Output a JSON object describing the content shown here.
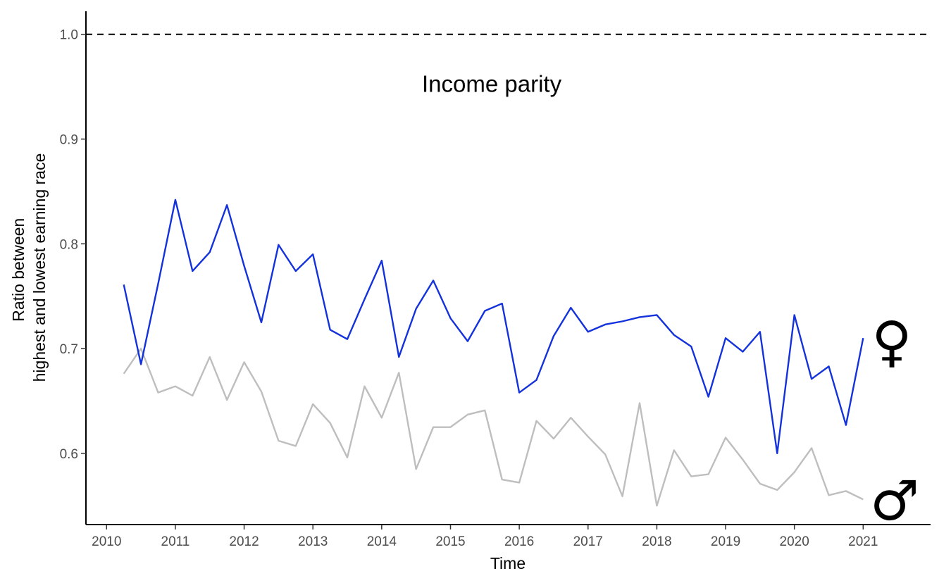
{
  "chart_data": {
    "type": "line",
    "title": "",
    "xlabel": "Time",
    "ylabel_lines": [
      "Ratio between",
      "highest and lowest earning race"
    ],
    "xlim": [
      2009.7,
      2021.98
    ],
    "ylim": [
      0.532,
      1.022
    ],
    "x_ticks": [
      2010,
      2011,
      2012,
      2013,
      2014,
      2015,
      2016,
      2017,
      2018,
      2019,
      2020,
      2021
    ],
    "y_ticks": [
      0.6,
      0.7,
      0.8,
      0.9,
      1.0
    ],
    "y_tick_labels": [
      "0.6",
      "0.7",
      "0.8",
      "0.9",
      "1.0"
    ],
    "grid": false,
    "reference_line": {
      "y": 1.0,
      "style": "dashed",
      "color": "#000000"
    },
    "annotation": {
      "text": "Income parity",
      "x": 2015.6,
      "y": 0.945
    },
    "x": [
      2010.25,
      2010.5,
      2010.75,
      2011.0,
      2011.25,
      2011.5,
      2011.75,
      2012.0,
      2012.25,
      2012.5,
      2012.75,
      2013.0,
      2013.25,
      2013.5,
      2013.75,
      2014.0,
      2014.25,
      2014.5,
      2014.75,
      2015.0,
      2015.25,
      2015.5,
      2015.75,
      2016.0,
      2016.25,
      2016.5,
      2016.75,
      2017.0,
      2017.25,
      2017.5,
      2017.75,
      2018.0,
      2018.25,
      2018.5,
      2018.75,
      2019.0,
      2019.25,
      2019.5,
      2019.75,
      2020.0,
      2020.25,
      2020.5,
      2020.75,
      2021.0
    ],
    "series": [
      {
        "symbol": "♀",
        "color": "#1432dc",
        "values": [
          0.761,
          0.685,
          0.762,
          0.842,
          0.774,
          0.792,
          0.837,
          0.779,
          0.725,
          0.799,
          0.774,
          0.79,
          0.718,
          0.709,
          0.747,
          0.784,
          0.692,
          0.738,
          0.765,
          0.729,
          0.707,
          0.736,
          0.743,
          0.658,
          0.67,
          0.712,
          0.739,
          0.716,
          0.723,
          0.726,
          0.73,
          0.732,
          0.713,
          0.702,
          0.654,
          0.71,
          0.697,
          0.716,
          0.6,
          0.732,
          0.671,
          0.683,
          0.627,
          0.71
        ]
      },
      {
        "symbol": "♂",
        "color": "#bebebe",
        "values": [
          0.676,
          0.7,
          0.658,
          0.664,
          0.655,
          0.692,
          0.651,
          0.687,
          0.659,
          0.612,
          0.607,
          0.647,
          0.629,
          0.596,
          0.664,
          0.634,
          0.677,
          0.585,
          0.625,
          0.625,
          0.637,
          0.641,
          0.575,
          0.572,
          0.631,
          0.614,
          0.634,
          0.616,
          0.599,
          0.559,
          0.648,
          0.55,
          0.603,
          0.578,
          0.58,
          0.615,
          0.594,
          0.571,
          0.565,
          0.582,
          0.605,
          0.56,
          0.564,
          0.556
        ]
      }
    ]
  }
}
